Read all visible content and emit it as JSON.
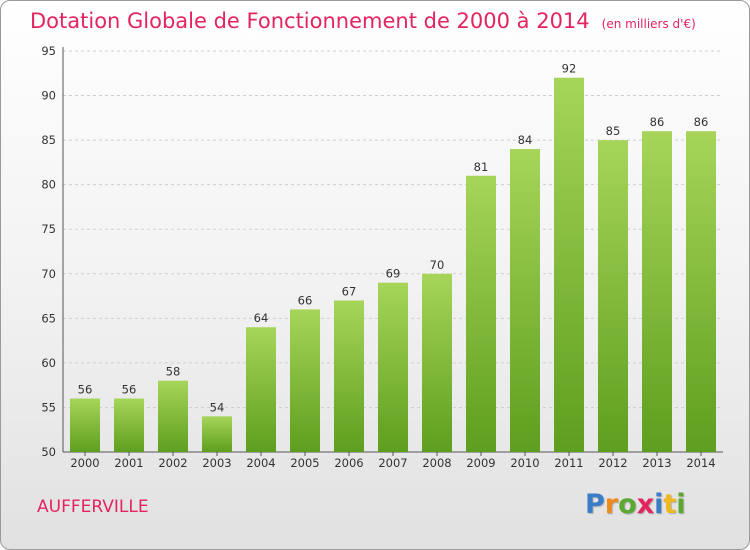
{
  "title": "Dotation Globale de Fonctionnement de 2000 à 2014",
  "unit": "(en milliers d'€)",
  "commune": "AUFFERVILLE",
  "logo": {
    "letters": [
      "P",
      "r",
      "o",
      "x",
      "i",
      "t",
      "i"
    ],
    "colors": [
      "#3a7cc7",
      "#f08a1c",
      "#5aa832",
      "#e4245f",
      "#3a7cc7",
      "#f0b81c",
      "#5aa832"
    ]
  },
  "colors": {
    "bar_light": "#a6d55a",
    "bar_dark": "#5e9e1e",
    "title": "#e4245f"
  },
  "chart_data": {
    "type": "bar",
    "categories": [
      "2000",
      "2001",
      "2002",
      "2003",
      "2004",
      "2005",
      "2006",
      "2007",
      "2008",
      "2009",
      "2010",
      "2011",
      "2012",
      "2013",
      "2014"
    ],
    "values": [
      56,
      56,
      58,
      54,
      64,
      66,
      67,
      69,
      70,
      81,
      84,
      92,
      85,
      86,
      86
    ],
    "ylim": [
      50,
      95
    ],
    "yticks": [
      50,
      55,
      60,
      65,
      70,
      75,
      80,
      85,
      90,
      95
    ],
    "grid": true
  }
}
